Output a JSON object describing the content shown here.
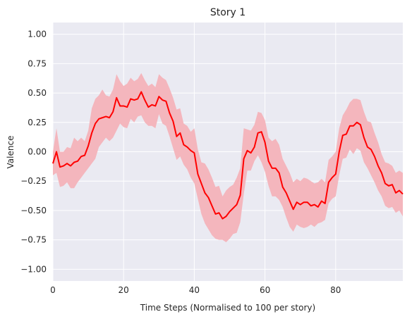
{
  "chart_data": {
    "type": "line",
    "title": "Story 1",
    "xlabel": "Time Steps (Normalised to 100 per story)",
    "ylabel": "Valence",
    "xlim": [
      0,
      99
    ],
    "ylim": [
      -1.1,
      1.1
    ],
    "xticks": [
      0,
      20,
      40,
      60,
      80
    ],
    "yticks": [
      -1.0,
      -0.75,
      -0.5,
      -0.25,
      0.0,
      0.25,
      0.5,
      0.75,
      1.0
    ],
    "ytick_labels": [
      "−1.00",
      "−0.75",
      "−0.50",
      "−0.25",
      "0.00",
      "0.25",
      "0.50",
      "0.75",
      "1.00"
    ],
    "xtick_labels": [
      "0",
      "20",
      "40",
      "60",
      "80"
    ],
    "grid": true,
    "colors": {
      "line": "#ff0000",
      "band": "#f4b6bd",
      "plot_bg": "#eaeaf2",
      "grid": "#ffffff"
    },
    "series": [
      {
        "x": [
          0,
          1,
          2,
          3,
          4,
          5,
          6,
          7,
          8,
          9,
          10,
          11,
          12,
          13,
          14,
          15,
          16,
          17,
          18,
          19,
          20,
          21,
          22,
          23,
          24,
          25,
          26,
          27,
          28,
          29,
          30,
          31,
          32,
          33,
          34,
          35,
          36,
          37,
          38,
          39,
          40,
          41,
          42,
          43,
          44,
          45,
          46,
          47,
          48,
          49,
          50,
          51,
          52,
          53,
          54,
          55,
          56,
          57,
          58,
          59,
          60,
          61,
          62,
          63,
          64,
          65,
          66,
          67,
          68,
          69,
          70,
          71,
          72,
          73,
          74,
          75,
          76,
          77,
          78,
          79,
          80,
          81,
          82,
          83,
          84,
          85,
          86,
          87,
          88,
          89,
          90,
          91,
          92,
          93,
          94,
          95,
          96,
          97,
          98,
          99
        ],
        "y": [
          -0.1,
          0.0,
          -0.13,
          -0.12,
          -0.1,
          -0.12,
          -0.09,
          -0.08,
          -0.04,
          -0.03,
          0.05,
          0.16,
          0.24,
          0.28,
          0.29,
          0.3,
          0.29,
          0.34,
          0.46,
          0.39,
          0.39,
          0.38,
          0.45,
          0.44,
          0.45,
          0.51,
          0.44,
          0.38,
          0.4,
          0.39,
          0.47,
          0.44,
          0.43,
          0.33,
          0.26,
          0.13,
          0.16,
          0.06,
          0.04,
          0.01,
          -0.01,
          -0.19,
          -0.27,
          -0.35,
          -0.39,
          -0.46,
          -0.53,
          -0.52,
          -0.57,
          -0.55,
          -0.51,
          -0.48,
          -0.45,
          -0.37,
          -0.06,
          0.01,
          -0.01,
          0.04,
          0.16,
          0.17,
          0.08,
          -0.08,
          -0.14,
          -0.14,
          -0.18,
          -0.3,
          -0.35,
          -0.42,
          -0.49,
          -0.43,
          -0.45,
          -0.43,
          -0.43,
          -0.46,
          -0.45,
          -0.47,
          -0.42,
          -0.44,
          -0.26,
          -0.22,
          -0.19,
          0.0,
          0.14,
          0.15,
          0.22,
          0.22,
          0.25,
          0.23,
          0.12,
          0.04,
          0.02,
          -0.04,
          -0.12,
          -0.18,
          -0.27,
          -0.29,
          -0.28,
          -0.35,
          -0.33,
          -0.36
        ],
        "lower": [
          -0.2,
          -0.18,
          -0.3,
          -0.29,
          -0.26,
          -0.31,
          -0.31,
          -0.26,
          -0.22,
          -0.18,
          -0.14,
          -0.1,
          -0.06,
          0.04,
          0.08,
          0.12,
          0.09,
          0.12,
          0.18,
          0.24,
          0.21,
          0.2,
          0.28,
          0.25,
          0.3,
          0.31,
          0.25,
          0.22,
          0.22,
          0.2,
          0.32,
          0.24,
          0.22,
          0.13,
          0.03,
          -0.07,
          -0.04,
          -0.11,
          -0.15,
          -0.22,
          -0.27,
          -0.4,
          -0.53,
          -0.61,
          -0.66,
          -0.71,
          -0.74,
          -0.75,
          -0.75,
          -0.77,
          -0.74,
          -0.7,
          -0.69,
          -0.6,
          -0.36,
          -0.16,
          -0.16,
          -0.08,
          -0.03,
          -0.09,
          -0.17,
          -0.29,
          -0.38,
          -0.38,
          -0.41,
          -0.47,
          -0.56,
          -0.64,
          -0.68,
          -0.62,
          -0.64,
          -0.65,
          -0.64,
          -0.62,
          -0.64,
          -0.61,
          -0.6,
          -0.58,
          -0.44,
          -0.4,
          -0.38,
          -0.2,
          -0.06,
          -0.05,
          0.02,
          -0.02,
          0.03,
          0.01,
          -0.09,
          -0.14,
          -0.2,
          -0.26,
          -0.33,
          -0.38,
          -0.46,
          -0.48,
          -0.47,
          -0.52,
          -0.5,
          -0.55
        ],
        "upper": [
          0.0,
          0.2,
          0.0,
          0.0,
          0.04,
          0.03,
          0.12,
          0.09,
          0.12,
          0.09,
          0.18,
          0.37,
          0.45,
          0.48,
          0.53,
          0.48,
          0.47,
          0.53,
          0.66,
          0.6,
          0.56,
          0.58,
          0.63,
          0.6,
          0.62,
          0.67,
          0.61,
          0.56,
          0.58,
          0.55,
          0.66,
          0.63,
          0.61,
          0.54,
          0.46,
          0.36,
          0.37,
          0.24,
          0.22,
          0.17,
          0.2,
          0.02,
          -0.09,
          -0.1,
          -0.15,
          -0.22,
          -0.3,
          -0.29,
          -0.38,
          -0.33,
          -0.3,
          -0.28,
          -0.22,
          -0.14,
          0.2,
          0.19,
          0.18,
          0.23,
          0.34,
          0.33,
          0.27,
          0.12,
          0.09,
          0.11,
          0.06,
          -0.06,
          -0.12,
          -0.18,
          -0.26,
          -0.23,
          -0.25,
          -0.22,
          -0.23,
          -0.25,
          -0.27,
          -0.26,
          -0.23,
          -0.26,
          -0.07,
          -0.04,
          0.0,
          0.2,
          0.31,
          0.36,
          0.42,
          0.45,
          0.45,
          0.44,
          0.34,
          0.26,
          0.25,
          0.16,
          0.08,
          -0.02,
          -0.09,
          -0.1,
          -0.12,
          -0.18,
          -0.16,
          -0.18
        ]
      }
    ]
  }
}
